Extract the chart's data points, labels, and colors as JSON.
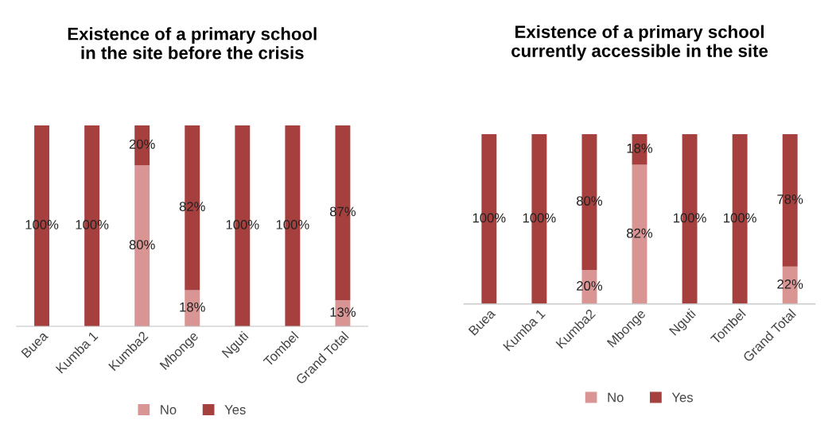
{
  "chart_data": [
    {
      "type": "bar",
      "title": "Existence of a primary school\nin the site before the crisis",
      "categories": [
        "Buea",
        "Kumba 1",
        "Kumba2",
        "Mbonge",
        "Nguti",
        "Tombel",
        "Grand Total"
      ],
      "stacked": true,
      "legend": "bottom",
      "grid": false,
      "tick_labels": "x",
      "series": [
        {
          "name": "No",
          "color": "#d99594",
          "values": [
            0,
            0,
            80,
            18,
            0,
            0,
            13
          ],
          "value_labels": [
            null,
            null,
            "80%",
            "18%",
            null,
            null,
            "13%"
          ]
        },
        {
          "name": "Yes",
          "color": "#a5403f",
          "values": [
            100,
            100,
            20,
            82,
            100,
            100,
            87
          ],
          "value_labels": [
            "100%",
            "100%",
            "20%",
            "82%",
            "100%",
            "100%",
            "87%"
          ]
        }
      ]
    },
    {
      "type": "bar",
      "title": "Existence of a primary school\ncurrently accessible in the site",
      "categories": [
        "Buea",
        "Kumba 1",
        "Kumba2",
        "Mbonge",
        "Nguti",
        "Tombel",
        "Grand Total"
      ],
      "stacked": true,
      "legend": "bottom",
      "grid": false,
      "tick_labels": "x",
      "series": [
        {
          "name": "No",
          "color": "#d99594",
          "values": [
            0,
            0,
            20,
            82,
            0,
            0,
            22
          ],
          "value_labels": [
            null,
            null,
            "20%",
            "82%",
            null,
            null,
            "22%"
          ]
        },
        {
          "name": "Yes",
          "color": "#a5403f",
          "values": [
            100,
            100,
            80,
            18,
            100,
            100,
            78
          ],
          "value_labels": [
            "100%",
            "100%",
            "80%",
            "18%",
            "100%",
            "100%",
            "78%"
          ]
        }
      ]
    }
  ]
}
